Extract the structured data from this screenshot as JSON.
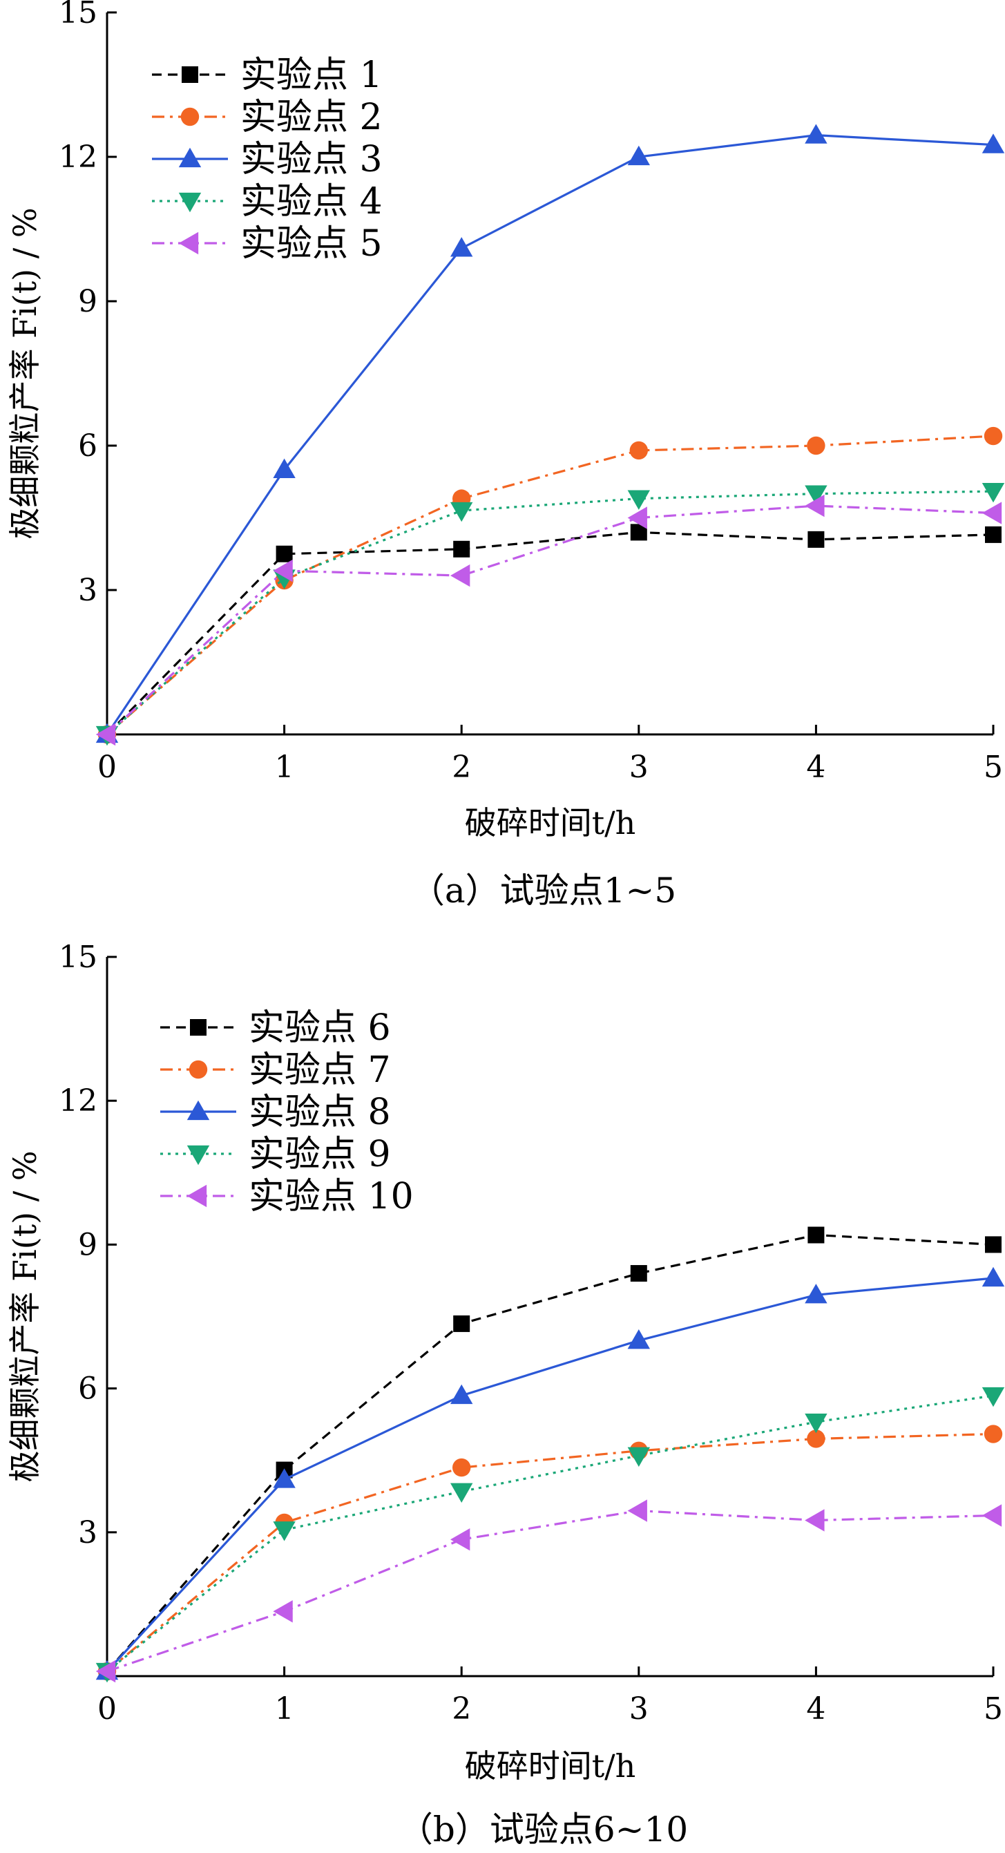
{
  "colors": {
    "s1": "#000000",
    "s2": "#f26522",
    "s3": "#2b58d6",
    "s4": "#1aa777",
    "s5": "#c05ce8"
  },
  "chart_data": [
    {
      "type": "line",
      "caption": "（a）试验点1~5",
      "xlabel": "破碎时间t/h",
      "ylabel": "极细颗粒产率 Fi(t) / %",
      "xlim": [
        0,
        5
      ],
      "ylim": [
        0,
        15
      ],
      "xticks": [
        "0",
        "1",
        "2",
        "3",
        "4",
        "5"
      ],
      "yticks": [
        "3",
        "6",
        "9",
        "12",
        "15"
      ],
      "yticks_values": [
        3,
        6,
        9,
        12,
        15
      ],
      "legend_position": "top-left",
      "x": [
        0,
        1,
        2,
        3,
        4,
        5
      ],
      "series": [
        {
          "name": "实验点 1",
          "marker": "square",
          "dash": "dashed",
          "color_key": "s1",
          "values": [
            0,
            3.75,
            3.85,
            4.2,
            4.05,
            4.15
          ]
        },
        {
          "name": "实验点 2",
          "marker": "circle",
          "dash": "dashdot",
          "color_key": "s2",
          "values": [
            0,
            3.2,
            4.9,
            5.9,
            6.0,
            6.2
          ]
        },
        {
          "name": "实验点 3",
          "marker": "triangle-up",
          "dash": "solid",
          "color_key": "s3",
          "values": [
            0,
            5.5,
            10.1,
            12.0,
            12.45,
            12.25
          ]
        },
        {
          "name": "实验点 4",
          "marker": "triangle-down",
          "dash": "dotted",
          "color_key": "s4",
          "values": [
            0,
            3.25,
            4.65,
            4.9,
            5.0,
            5.05
          ]
        },
        {
          "name": "实验点 5",
          "marker": "triangle-left",
          "dash": "dashdot",
          "color_key": "s5",
          "values": [
            0,
            3.4,
            3.3,
            4.5,
            4.75,
            4.6
          ]
        }
      ]
    },
    {
      "type": "line",
      "caption": "（b）试验点6~10",
      "xlabel": "破碎时间t/h",
      "ylabel": "极细颗粒产率 Fi(t) / %",
      "xlim": [
        0,
        5
      ],
      "ylim": [
        0,
        15
      ],
      "xticks": [
        "0",
        "1",
        "2",
        "3",
        "4",
        "5"
      ],
      "yticks": [
        "3",
        "6",
        "9",
        "12",
        "15"
      ],
      "yticks_values": [
        3,
        6,
        9,
        12,
        15
      ],
      "legend_position": "top-left",
      "x": [
        0,
        1,
        2,
        3,
        4,
        5
      ],
      "series": [
        {
          "name": "实验点 6",
          "marker": "square",
          "dash": "dashed",
          "color_key": "s1",
          "values": [
            0.1,
            4.3,
            7.35,
            8.4,
            9.2,
            9.0
          ]
        },
        {
          "name": "实验点 7",
          "marker": "circle",
          "dash": "dashdot",
          "color_key": "s2",
          "values": [
            0.1,
            3.2,
            4.35,
            4.7,
            4.95,
            5.05
          ]
        },
        {
          "name": "实验点 8",
          "marker": "triangle-up",
          "dash": "solid",
          "color_key": "s3",
          "values": [
            0.1,
            4.1,
            5.85,
            7.0,
            7.95,
            8.3
          ]
        },
        {
          "name": "实验点 9",
          "marker": "triangle-down",
          "dash": "dotted",
          "color_key": "s4",
          "values": [
            0.1,
            3.05,
            3.85,
            4.6,
            5.3,
            5.85
          ]
        },
        {
          "name": "实验点 10",
          "marker": "triangle-left",
          "dash": "dashdot",
          "color_key": "s5",
          "values": [
            0.1,
            1.35,
            2.85,
            3.45,
            3.25,
            3.35
          ]
        }
      ]
    }
  ]
}
